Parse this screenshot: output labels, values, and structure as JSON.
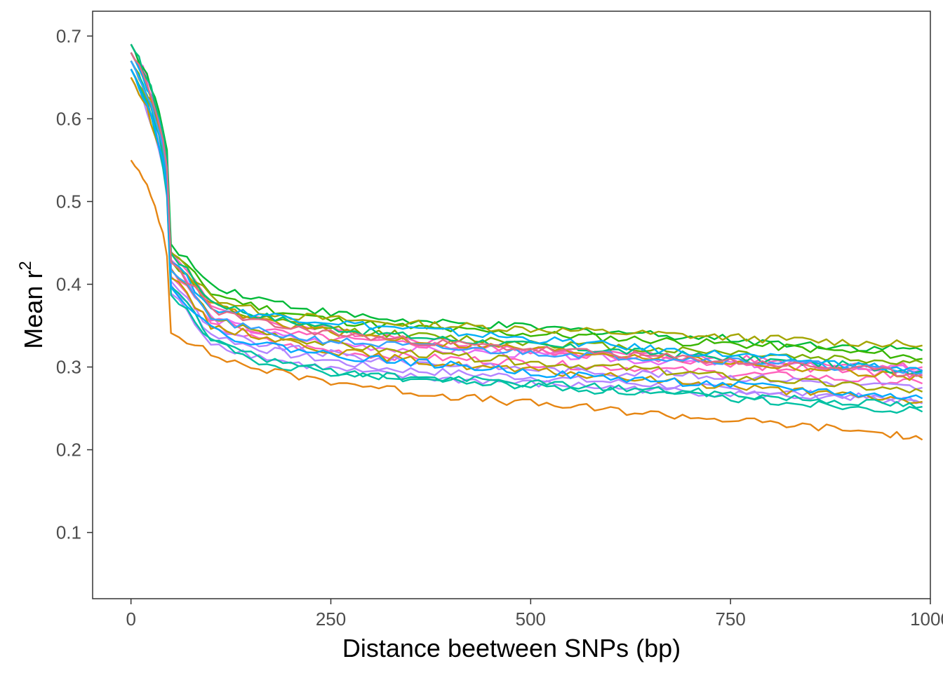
{
  "chart_data": {
    "type": "line",
    "xlabel": "Distance beetween SNPs (bp)",
    "ylabel_main": "Mean r",
    "ylabel_sup": "2",
    "xlim": [
      -48,
      1000
    ],
    "ylim": [
      0.02,
      0.73
    ],
    "x_ticks": [
      0,
      250,
      500,
      750,
      1000
    ],
    "y_ticks": [
      0.1,
      0.2,
      0.3,
      0.4,
      0.5,
      0.6,
      0.7
    ],
    "x_tick_labels": [
      "0",
      "250",
      "500",
      "750",
      "1000"
    ],
    "y_tick_labels": [
      "0.1",
      "0.2",
      "0.3",
      "0.4",
      "0.5",
      "0.6",
      "0.7"
    ],
    "legend": "none",
    "grid": false,
    "x": [
      0,
      50,
      100,
      150,
      200,
      250,
      300,
      350,
      400,
      450,
      500,
      550,
      600,
      650,
      700,
      750,
      800,
      850,
      900,
      950,
      990
    ],
    "series": [
      {
        "color": "#E76BF3",
        "values": [
          0.69,
          0.43,
          0.36,
          0.345,
          0.335,
          0.33,
          0.325,
          0.322,
          0.32,
          0.318,
          0.315,
          0.313,
          0.31,
          0.308,
          0.306,
          0.305,
          0.303,
          0.302,
          0.3,
          0.298,
          0.297
        ]
      },
      {
        "color": "#FF62BC",
        "values": [
          0.69,
          0.44,
          0.375,
          0.36,
          0.35,
          0.345,
          0.34,
          0.335,
          0.33,
          0.325,
          0.32,
          0.317,
          0.313,
          0.31,
          0.307,
          0.304,
          0.3,
          0.298,
          0.295,
          0.292,
          0.29
        ]
      },
      {
        "color": "#FF62BC",
        "values": [
          0.68,
          0.42,
          0.36,
          0.345,
          0.34,
          0.335,
          0.33,
          0.328,
          0.325,
          0.323,
          0.32,
          0.318,
          0.316,
          0.314,
          0.312,
          0.31,
          0.308,
          0.306,
          0.304,
          0.302,
          0.3
        ]
      },
      {
        "color": "#FF62BC",
        "values": [
          0.67,
          0.41,
          0.35,
          0.335,
          0.325,
          0.32,
          0.315,
          0.312,
          0.31,
          0.308,
          0.305,
          0.302,
          0.3,
          0.298,
          0.295,
          0.292,
          0.29,
          0.288,
          0.285,
          0.283,
          0.28
        ]
      },
      {
        "color": "#B385FF",
        "values": [
          0.66,
          0.4,
          0.34,
          0.325,
          0.315,
          0.308,
          0.3,
          0.296,
          0.293,
          0.29,
          0.288,
          0.285,
          0.282,
          0.279,
          0.276,
          0.273,
          0.27,
          0.267,
          0.264,
          0.261,
          0.258
        ]
      },
      {
        "color": "#B385FF",
        "values": [
          0.65,
          0.39,
          0.33,
          0.315,
          0.305,
          0.298,
          0.292,
          0.288,
          0.285,
          0.283,
          0.28,
          0.278,
          0.275,
          0.273,
          0.27,
          0.268,
          0.266,
          0.264,
          0.262,
          0.259,
          0.256
        ]
      },
      {
        "color": "#B385FF",
        "values": [
          0.66,
          0.405,
          0.345,
          0.33,
          0.322,
          0.316,
          0.31,
          0.306,
          0.303,
          0.3,
          0.298,
          0.296,
          0.294,
          0.292,
          0.29,
          0.288,
          0.286,
          0.283,
          0.28,
          0.277,
          0.275
        ]
      },
      {
        "color": "#00BA38",
        "values": [
          0.69,
          0.45,
          0.4,
          0.385,
          0.375,
          0.365,
          0.36,
          0.355,
          0.352,
          0.35,
          0.348,
          0.345,
          0.343,
          0.34,
          0.337,
          0.334,
          0.33,
          0.327,
          0.325,
          0.322,
          0.32
        ]
      },
      {
        "color": "#39B600",
        "values": [
          0.68,
          0.44,
          0.39,
          0.375,
          0.365,
          0.357,
          0.352,
          0.348,
          0.345,
          0.342,
          0.34,
          0.338,
          0.335,
          0.333,
          0.33,
          0.328,
          0.325,
          0.322,
          0.318,
          0.315,
          0.31
        ]
      },
      {
        "color": "#7CAE00",
        "values": [
          0.67,
          0.43,
          0.375,
          0.36,
          0.352,
          0.346,
          0.342,
          0.338,
          0.335,
          0.333,
          0.33,
          0.327,
          0.325,
          0.322,
          0.32,
          0.318,
          0.315,
          0.312,
          0.31,
          0.307,
          0.305
        ]
      },
      {
        "color": "#A3A500",
        "values": [
          0.68,
          0.44,
          0.385,
          0.37,
          0.362,
          0.358,
          0.355,
          0.352,
          0.35,
          0.348,
          0.346,
          0.344,
          0.342,
          0.34,
          0.338,
          0.336,
          0.334,
          0.332,
          0.33,
          0.328,
          0.326
        ]
      },
      {
        "color": "#A3A500",
        "values": [
          0.66,
          0.42,
          0.36,
          0.345,
          0.335,
          0.328,
          0.322,
          0.317,
          0.313,
          0.31,
          0.306,
          0.303,
          0.3,
          0.296,
          0.292,
          0.288,
          0.285,
          0.281,
          0.277,
          0.273,
          0.27
        ]
      },
      {
        "color": "#C49A00",
        "values": [
          0.65,
          0.41,
          0.35,
          0.34,
          0.33,
          0.32,
          0.314,
          0.308,
          0.303,
          0.299,
          0.295,
          0.292,
          0.288,
          0.285,
          0.281,
          0.277,
          0.273,
          0.269,
          0.265,
          0.262,
          0.258
        ]
      },
      {
        "color": "#C49A00",
        "values": [
          0.67,
          0.43,
          0.375,
          0.36,
          0.35,
          0.343,
          0.337,
          0.332,
          0.328,
          0.325,
          0.322,
          0.319,
          0.316,
          0.313,
          0.31,
          0.306,
          0.302,
          0.298,
          0.294,
          0.29,
          0.287
        ]
      },
      {
        "color": "#00BF7D",
        "values": [
          0.69,
          0.44,
          0.38,
          0.365,
          0.355,
          0.348,
          0.342,
          0.337,
          0.333,
          0.33,
          0.326,
          0.323,
          0.32,
          0.317,
          0.314,
          0.311,
          0.308,
          0.305,
          0.302,
          0.298,
          0.295
        ]
      },
      {
        "color": "#00C1A3",
        "values": [
          0.67,
          0.4,
          0.335,
          0.315,
          0.303,
          0.295,
          0.29,
          0.286,
          0.283,
          0.28,
          0.277,
          0.274,
          0.271,
          0.268,
          0.265,
          0.262,
          0.259,
          0.256,
          0.253,
          0.25,
          0.246
        ]
      },
      {
        "color": "#00C1A3",
        "values": [
          0.66,
          0.39,
          0.33,
          0.31,
          0.3,
          0.294,
          0.29,
          0.287,
          0.285,
          0.283,
          0.28,
          0.278,
          0.275,
          0.272,
          0.27,
          0.267,
          0.264,
          0.261,
          0.258,
          0.255,
          0.252
        ]
      },
      {
        "color": "#00B0F6",
        "values": [
          0.68,
          0.43,
          0.37,
          0.365,
          0.36,
          0.355,
          0.35,
          0.346,
          0.342,
          0.338,
          0.334,
          0.33,
          0.326,
          0.322,
          0.318,
          0.315,
          0.311,
          0.307,
          0.303,
          0.299,
          0.295
        ]
      },
      {
        "color": "#35A2FF",
        "values": [
          0.67,
          0.42,
          0.36,
          0.345,
          0.337,
          0.332,
          0.328,
          0.325,
          0.322,
          0.32,
          0.318,
          0.316,
          0.314,
          0.312,
          0.31,
          0.308,
          0.306,
          0.303,
          0.3,
          0.296,
          0.293
        ]
      },
      {
        "color": "#00A9FF",
        "values": [
          0.66,
          0.4,
          0.345,
          0.33,
          0.322,
          0.315,
          0.31,
          0.306,
          0.302,
          0.298,
          0.294,
          0.29,
          0.287,
          0.284,
          0.281,
          0.278,
          0.275,
          0.272,
          0.268,
          0.265,
          0.262
        ]
      },
      {
        "color": "#E16A86",
        "values": [
          0.68,
          0.43,
          0.37,
          0.355,
          0.347,
          0.341,
          0.336,
          0.332,
          0.328,
          0.325,
          0.322,
          0.319,
          0.316,
          0.313,
          0.31,
          0.307,
          0.304,
          0.301,
          0.298,
          0.294,
          0.29
        ]
      },
      {
        "color": "#E68613",
        "values": [
          0.55,
          0.345,
          0.315,
          0.3,
          0.29,
          0.283,
          0.277,
          0.27,
          0.265,
          0.26,
          0.256,
          0.252,
          0.248,
          0.244,
          0.24,
          0.236,
          0.232,
          0.228,
          0.224,
          0.219,
          0.212
        ]
      }
    ]
  }
}
